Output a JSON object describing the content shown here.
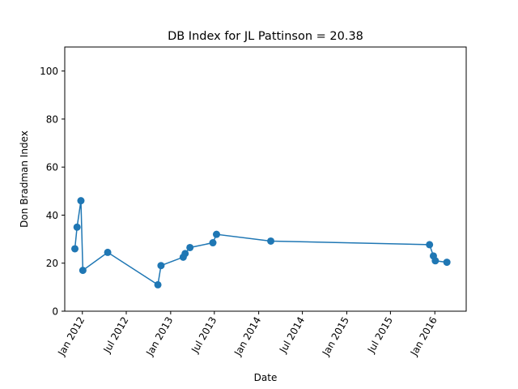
{
  "chart_data": {
    "type": "line",
    "title": "DB Index for JL Pattinson = 20.38",
    "xlabel": "Date",
    "ylabel": "Don Bradman Index",
    "ylim": [
      0,
      110
    ],
    "xlim": [
      "2011-10-20",
      "2016-05-10"
    ],
    "yticks": [
      0,
      20,
      40,
      60,
      80,
      100
    ],
    "xticks": [
      "2012-01-01",
      "2012-07-01",
      "2013-01-01",
      "2013-07-01",
      "2014-01-01",
      "2014-07-01",
      "2015-01-01",
      "2015-07-01",
      "2016-01-01"
    ],
    "xtick_labels": [
      "Jan 2012",
      "Jul 2012",
      "Jan 2013",
      "Jul 2013",
      "Jan 2014",
      "Jul 2014",
      "Jan 2015",
      "Jul 2015",
      "Jan 2016"
    ],
    "grid": false,
    "series": [
      {
        "color": "#1f77b4",
        "marker": "circle",
        "points": [
          {
            "x": "2011-12-01",
            "y": 26
          },
          {
            "x": "2011-12-10",
            "y": 35
          },
          {
            "x": "2011-12-26",
            "y": 46
          },
          {
            "x": "2012-01-03",
            "y": 17
          },
          {
            "x": "2012-04-15",
            "y": 24.5
          },
          {
            "x": "2012-11-09",
            "y": 11
          },
          {
            "x": "2012-11-22",
            "y": 19
          },
          {
            "x": "2013-02-22",
            "y": 22.5
          },
          {
            "x": "2013-03-02",
            "y": 24
          },
          {
            "x": "2013-03-22",
            "y": 26.5
          },
          {
            "x": "2013-06-25",
            "y": 28.5
          },
          {
            "x": "2013-07-10",
            "y": 32
          },
          {
            "x": "2014-02-20",
            "y": 29.2
          },
          {
            "x": "2015-12-10",
            "y": 27.7
          },
          {
            "x": "2015-12-26",
            "y": 23
          },
          {
            "x": "2016-01-03",
            "y": 21
          },
          {
            "x": "2016-02-20",
            "y": 20.38
          }
        ]
      }
    ]
  }
}
